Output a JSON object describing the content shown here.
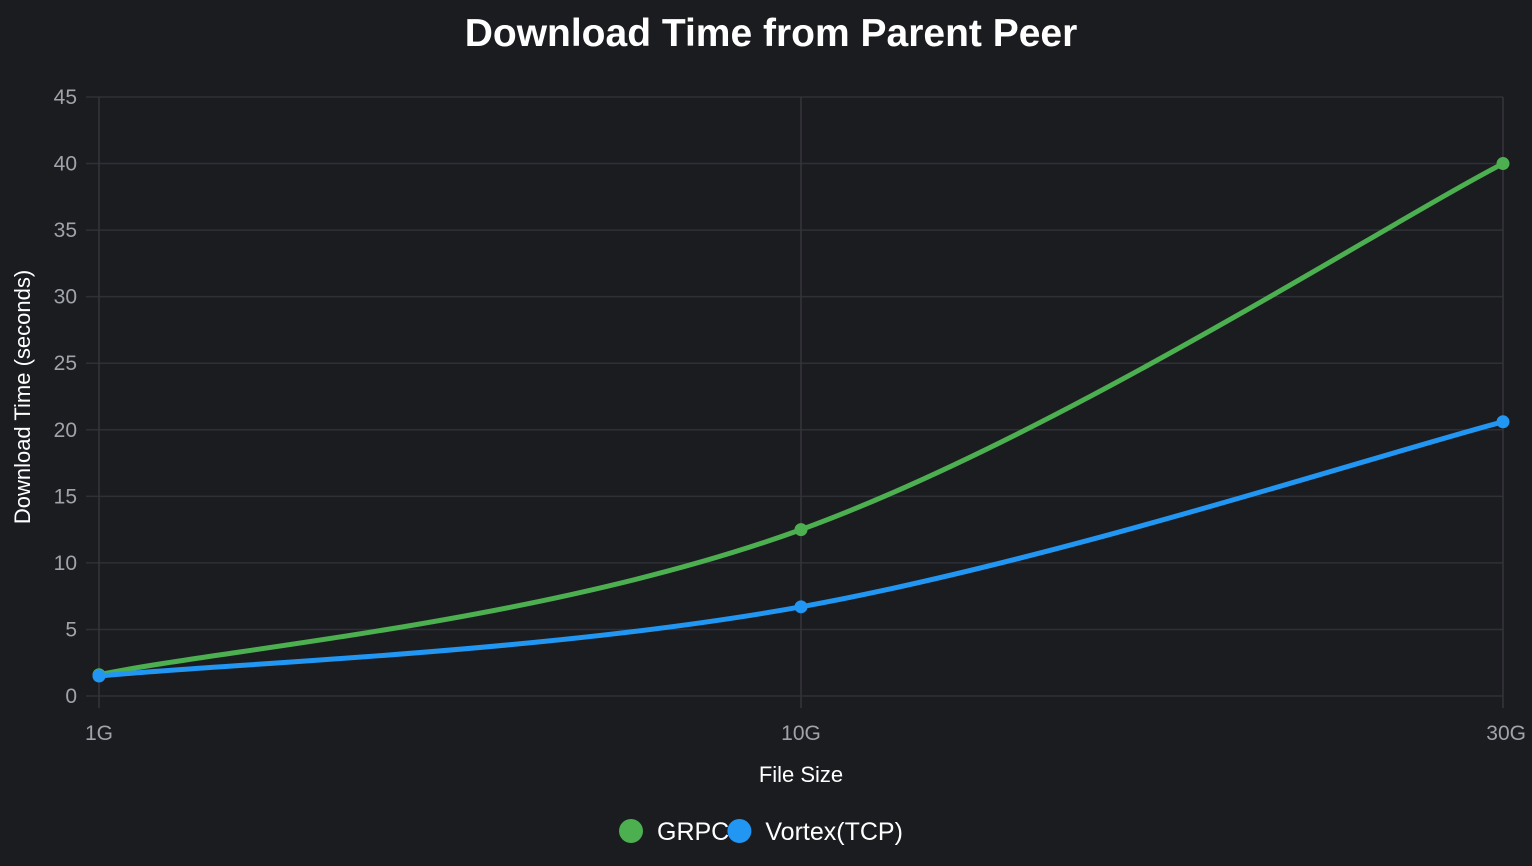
{
  "chart_data": {
    "type": "line",
    "title": "Download Time from Parent Peer",
    "xlabel": "File Size",
    "ylabel": "Download Time (seconds)",
    "categories": [
      "1G",
      "10G",
      "30G"
    ],
    "ylim": [
      0,
      45
    ],
    "yticks": [
      0,
      5,
      10,
      15,
      20,
      25,
      30,
      35,
      40,
      45
    ],
    "grid": true,
    "legend_position": "bottom-center",
    "series": [
      {
        "name": "GRPC",
        "color": "#4caf50",
        "values": [
          1.6,
          12.5,
          40.0
        ]
      },
      {
        "name": "Vortex(TCP)",
        "color": "#2196f3",
        "values": [
          1.5,
          6.7,
          20.6
        ]
      }
    ]
  },
  "background_color": "#1b1c20"
}
